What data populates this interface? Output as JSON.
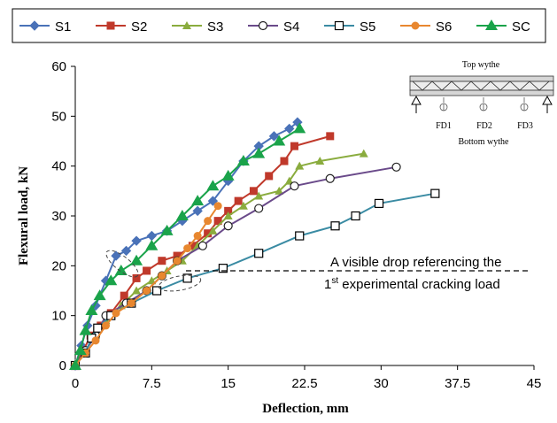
{
  "chart_data": {
    "type": "line",
    "xlabel": "Deflection, mm",
    "ylabel": "Flexural load, kN",
    "xlim": [
      0,
      45
    ],
    "ylim": [
      0,
      60
    ],
    "xticks": [
      "0",
      "7.5",
      "15",
      "22.5",
      "30",
      "37.5",
      "45"
    ],
    "yticks": [
      "0",
      "10",
      "20",
      "30",
      "40",
      "50",
      "60"
    ],
    "grid": false,
    "legend_placement": "top",
    "series": [
      {
        "name": "S1",
        "color": "#4a72b8",
        "marker": "diamond",
        "x": [
          0,
          0.6,
          1.2,
          2,
          3,
          4,
          5,
          6,
          7.5,
          9,
          10.5,
          12,
          13.5,
          15,
          16.5,
          18,
          19.5,
          21,
          21.8
        ],
        "y": [
          0,
          4,
          8,
          12,
          17,
          22,
          23,
          25,
          26,
          27,
          29,
          31,
          33,
          37,
          41,
          44,
          46,
          47.5,
          48.8
        ]
      },
      {
        "name": "S2",
        "color": "#c0392b",
        "marker": "square",
        "x": [
          0,
          0.8,
          1.5,
          2.5,
          3.5,
          4.8,
          6,
          7,
          8.5,
          10,
          11.5,
          13,
          14,
          15,
          16,
          17.5,
          19,
          20.5,
          21.5,
          25
        ],
        "y": [
          0,
          3,
          6,
          8,
          10.5,
          14,
          17.5,
          19,
          21,
          22,
          24,
          26.5,
          29,
          31,
          33,
          35,
          38,
          41,
          44,
          46
        ]
      },
      {
        "name": "S3",
        "color": "#8aac3e",
        "marker": "triangle-up",
        "x": [
          0,
          1,
          2,
          3,
          4.5,
          6,
          7.5,
          9,
          10.5,
          12,
          13.5,
          15,
          16.5,
          18,
          20,
          21,
          22,
          24,
          28.3
        ],
        "y": [
          0,
          3,
          6,
          9,
          12,
          15,
          17,
          19,
          21,
          24,
          27,
          30,
          32,
          34,
          35,
          37,
          40,
          41,
          42.5
        ]
      },
      {
        "name": "S4",
        "color": "#6a4a8a",
        "marker": "circle-open",
        "x": [
          0,
          1,
          2,
          3,
          5,
          7,
          8.5,
          10,
          12.5,
          15,
          18,
          21.5,
          25,
          31.5
        ],
        "y": [
          0,
          3,
          6,
          10,
          12.5,
          15,
          18,
          21,
          24,
          28,
          31.5,
          36,
          37.5,
          39.8
        ]
      },
      {
        "name": "S5",
        "color": "#3a8ba3",
        "marker": "square-open",
        "x": [
          0,
          1,
          1.6,
          2.2,
          3.5,
          5.5,
          8,
          11,
          14.5,
          18,
          22,
          25.5,
          27.5,
          29.8,
          35.3
        ],
        "y": [
          0,
          2.5,
          5.5,
          7.5,
          10,
          12.5,
          15,
          17.5,
          19.5,
          22.5,
          26,
          28,
          30,
          32.5,
          34.5
        ]
      },
      {
        "name": "S6",
        "color": "#e8872f",
        "marker": "circle",
        "x": [
          0,
          1,
          2,
          3,
          4,
          5.5,
          7,
          8.5,
          10,
          11,
          12,
          13,
          14
        ],
        "y": [
          0,
          2.5,
          5,
          8,
          10.5,
          12.5,
          15,
          18,
          21,
          23.5,
          26,
          29,
          32
        ]
      },
      {
        "name": "SC",
        "color": "#1aa34a",
        "marker": "triangle-filled",
        "x": [
          0,
          0.5,
          1,
          1.6,
          2.4,
          3.5,
          4.5,
          6,
          7.5,
          9,
          10.5,
          12,
          13.5,
          15,
          16.5,
          18,
          20,
          22
        ],
        "y": [
          0,
          3,
          7,
          11,
          14,
          17,
          19,
          21,
          24,
          27,
          30,
          33,
          36,
          38,
          41,
          42.5,
          45,
          47.5
        ]
      }
    ],
    "annotation": {
      "line1": "A visible drop referencing the",
      "line2_prefix": "1",
      "line2_sup": "st",
      "line2_rest": " experimental cracking load",
      "dashed_y": 19
    },
    "inset": {
      "top": "Top wythe",
      "bottom": "Bottom wythe",
      "fd1": "FD1",
      "fd2": "FD2",
      "fd3": "FD3"
    }
  }
}
